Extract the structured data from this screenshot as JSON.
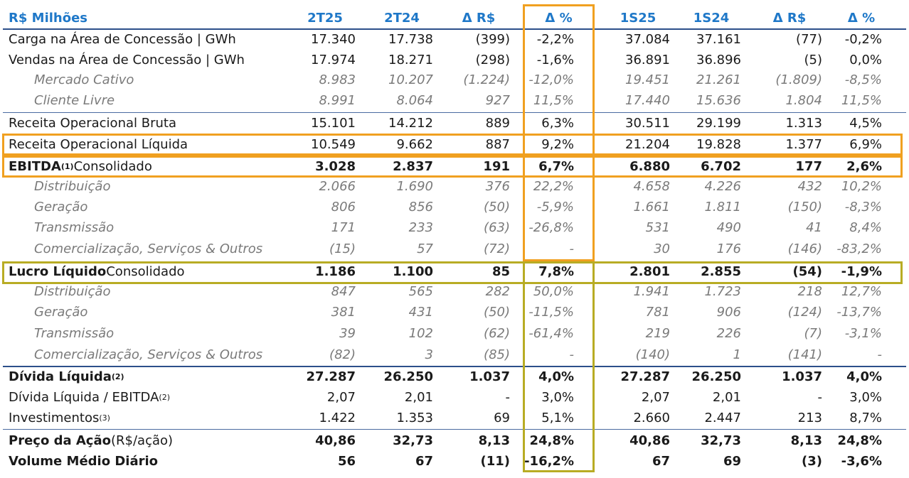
{
  "header": {
    "label": "R$ Milhões",
    "cols": [
      "2T25",
      "2T24",
      "Δ R$",
      "Δ %",
      "1S25",
      "1S24",
      "Δ R$",
      "Δ %"
    ]
  },
  "rows": [
    {
      "label": "Carga na Área de Concessão | GWh",
      "values": [
        "17.340",
        "17.738",
        "(399)",
        "-2,2%",
        "37.084",
        "37.161",
        "(77)",
        "-0,2%"
      ]
    },
    {
      "label": "Vendas na Área de Concessão | GWh",
      "values": [
        "17.974",
        "18.271",
        "(298)",
        "-1,6%",
        "36.891",
        "36.896",
        "(5)",
        "0,0%"
      ]
    },
    {
      "label": "Mercado Cativo",
      "values": [
        "8.983",
        "10.207",
        "(1.224)",
        "-12,0%",
        "19.451",
        "21.261",
        "(1.809)",
        "-8,5%"
      ]
    },
    {
      "label": "Cliente Livre",
      "values": [
        "8.991",
        "8.064",
        "927",
        "11,5%",
        "17.440",
        "15.636",
        "1.804",
        "11,5%"
      ]
    },
    {
      "label": "Receita Operacional Bruta",
      "values": [
        "15.101",
        "14.212",
        "889",
        "6,3%",
        "30.511",
        "29.199",
        "1.313",
        "4,5%"
      ]
    },
    {
      "label": "Receita Operacional Líquida",
      "values": [
        "10.549",
        "9.662",
        "887",
        "9,2%",
        "21.204",
        "19.828",
        "1.377",
        "6,9%"
      ]
    },
    {
      "label": "EBITDA",
      "sup": "(1)",
      "suffix": " Consolidado",
      "values": [
        "3.028",
        "2.837",
        "191",
        "6,7%",
        "6.880",
        "6.702",
        "177",
        "2,6%"
      ]
    },
    {
      "label": "Distribuição",
      "values": [
        "2.066",
        "1.690",
        "376",
        "22,2%",
        "4.658",
        "4.226",
        "432",
        "10,2%"
      ]
    },
    {
      "label": "Geração",
      "values": [
        "806",
        "856",
        "(50)",
        "-5,9%",
        "1.661",
        "1.811",
        "(150)",
        "-8,3%"
      ]
    },
    {
      "label": "Transmissão",
      "values": [
        "171",
        "233",
        "(63)",
        "-26,8%",
        "531",
        "490",
        "41",
        "8,4%"
      ]
    },
    {
      "label": "Comercialização, Serviços & Outros",
      "values": [
        "(15)",
        "57",
        "(72)",
        "-",
        "30",
        "176",
        "(146)",
        "-83,2%"
      ]
    },
    {
      "label": "Lucro Líquido",
      "suffix": " Consolidado",
      "values": [
        "1.186",
        "1.100",
        "85",
        "7,8%",
        "2.801",
        "2.855",
        "(54)",
        "-1,9%"
      ]
    },
    {
      "label": "Distribuição",
      "values": [
        "847",
        "565",
        "282",
        "50,0%",
        "1.941",
        "1.723",
        "218",
        "12,7%"
      ]
    },
    {
      "label": "Geração",
      "values": [
        "381",
        "431",
        "(50)",
        "-11,5%",
        "781",
        "906",
        "(124)",
        "-13,7%"
      ]
    },
    {
      "label": "Transmissão",
      "values": [
        "39",
        "102",
        "(62)",
        "-61,4%",
        "219",
        "226",
        "(7)",
        "-3,1%"
      ]
    },
    {
      "label": "Comercialização, Serviços & Outros",
      "values": [
        "(82)",
        "3",
        "(85)",
        "-",
        "(140)",
        "1",
        "(141)",
        "-"
      ]
    },
    {
      "label": "Dívida Líquida",
      "sup": "(2)",
      "values": [
        "27.287",
        "26.250",
        "1.037",
        "4,0%",
        "27.287",
        "26.250",
        "1.037",
        "4,0%"
      ]
    },
    {
      "label": "Dívida Líquida / EBITDA",
      "sup": "(2)",
      "values": [
        "2,07",
        "2,01",
        "-",
        "3,0%",
        "2,07",
        "2,01",
        "-",
        "3,0%"
      ]
    },
    {
      "label": "Investimentos",
      "sup": "(3)",
      "values": [
        "1.422",
        "1.353",
        "69",
        "5,1%",
        "2.660",
        "2.447",
        "213",
        "8,7%"
      ]
    },
    {
      "label": "Preço da Ação",
      "suffix": " (R$/ação)",
      "values": [
        "40,86",
        "32,73",
        "8,13",
        "24,8%",
        "40,86",
        "32,73",
        "8,13",
        "24,8%"
      ]
    },
    {
      "label": "Volume Médio Diário",
      "values": [
        "56",
        "67",
        "(11)",
        "-16,2%",
        "67",
        "69",
        "(3)",
        "-3,6%"
      ]
    }
  ],
  "colors": {
    "header_text": "#1f78c8",
    "highlight_orange": "#f0a020",
    "highlight_olive": "#b8ac24",
    "rule_line": "#2c4f8a"
  }
}
